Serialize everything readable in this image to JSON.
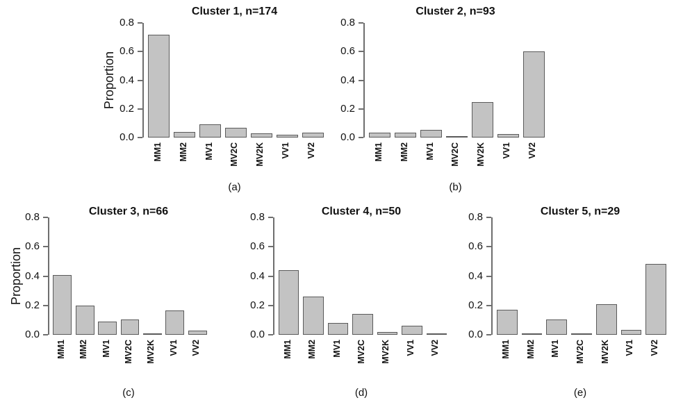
{
  "style": {
    "background": "#ffffff",
    "bar_fill": "#c3c3c3",
    "bar_border": "#5a5a5a",
    "axis_color": "#6e6e6e",
    "text_color": "#111111"
  },
  "chart_data": [
    {
      "type": "bar",
      "title": "Cluster 1, n=174",
      "panel_label": "(a)",
      "n": 174,
      "categories": [
        "MM1",
        "MM2",
        "MV1",
        "MV2C",
        "MV2K",
        "VV1",
        "VV2"
      ],
      "values": [
        0.718,
        0.04,
        0.092,
        0.069,
        0.029,
        0.02,
        0.034
      ],
      "xlabel": "",
      "ylabel": "Proportion",
      "ylim": [
        0,
        0.8
      ],
      "yticks": [
        0,
        0.2,
        0.4,
        0.6,
        0.8
      ],
      "grid": false,
      "legend": null
    },
    {
      "type": "bar",
      "title": "Cluster 2, n=93",
      "panel_label": "(b)",
      "n": 93,
      "categories": [
        "MM1",
        "MM2",
        "MV1",
        "MV2C",
        "MV2K",
        "VV1",
        "VV2"
      ],
      "values": [
        0.032,
        0.032,
        0.054,
        0.011,
        0.247,
        0.022,
        0.602
      ],
      "xlabel": "",
      "ylabel": "",
      "ylim": [
        0,
        0.8
      ],
      "yticks": [
        0,
        0.2,
        0.4,
        0.6,
        0.8
      ],
      "grid": false,
      "legend": null
    },
    {
      "type": "bar",
      "title": "Cluster 3, n=66",
      "panel_label": "(c)",
      "n": 66,
      "categories": [
        "MM1",
        "MM2",
        "MV1",
        "MV2C",
        "MV2K",
        "VV1",
        "VV2"
      ],
      "values": [
        0.409,
        0.197,
        0.091,
        0.106,
        0.002,
        0.167,
        0.03
      ],
      "xlabel": "",
      "ylabel": "Proportion",
      "ylim": [
        0,
        0.8
      ],
      "yticks": [
        0,
        0.2,
        0.4,
        0.6,
        0.8
      ],
      "grid": false,
      "legend": null
    },
    {
      "type": "bar",
      "title": "Cluster 4, n=50",
      "panel_label": "(d)",
      "n": 50,
      "categories": [
        "MM1",
        "MM2",
        "MV1",
        "MV2C",
        "MV2K",
        "VV1",
        "VV2"
      ],
      "values": [
        0.44,
        0.26,
        0.08,
        0.14,
        0.02,
        0.06,
        0.002
      ],
      "xlabel": "",
      "ylabel": "",
      "ylim": [
        0,
        0.8
      ],
      "yticks": [
        0,
        0.2,
        0.4,
        0.6,
        0.8
      ],
      "grid": false,
      "legend": null
    },
    {
      "type": "bar",
      "title": "Cluster 5, n=29",
      "panel_label": "(e)",
      "n": 29,
      "categories": [
        "MM1",
        "MM2",
        "MV1",
        "MV2C",
        "MV2K",
        "VV1",
        "VV2"
      ],
      "values": [
        0.172,
        0.002,
        0.103,
        0.002,
        0.207,
        0.034,
        0.483
      ],
      "xlabel": "",
      "ylabel": "",
      "ylim": [
        0,
        0.8
      ],
      "yticks": [
        0,
        0.2,
        0.4,
        0.6,
        0.8
      ],
      "grid": false,
      "legend": null
    }
  ]
}
